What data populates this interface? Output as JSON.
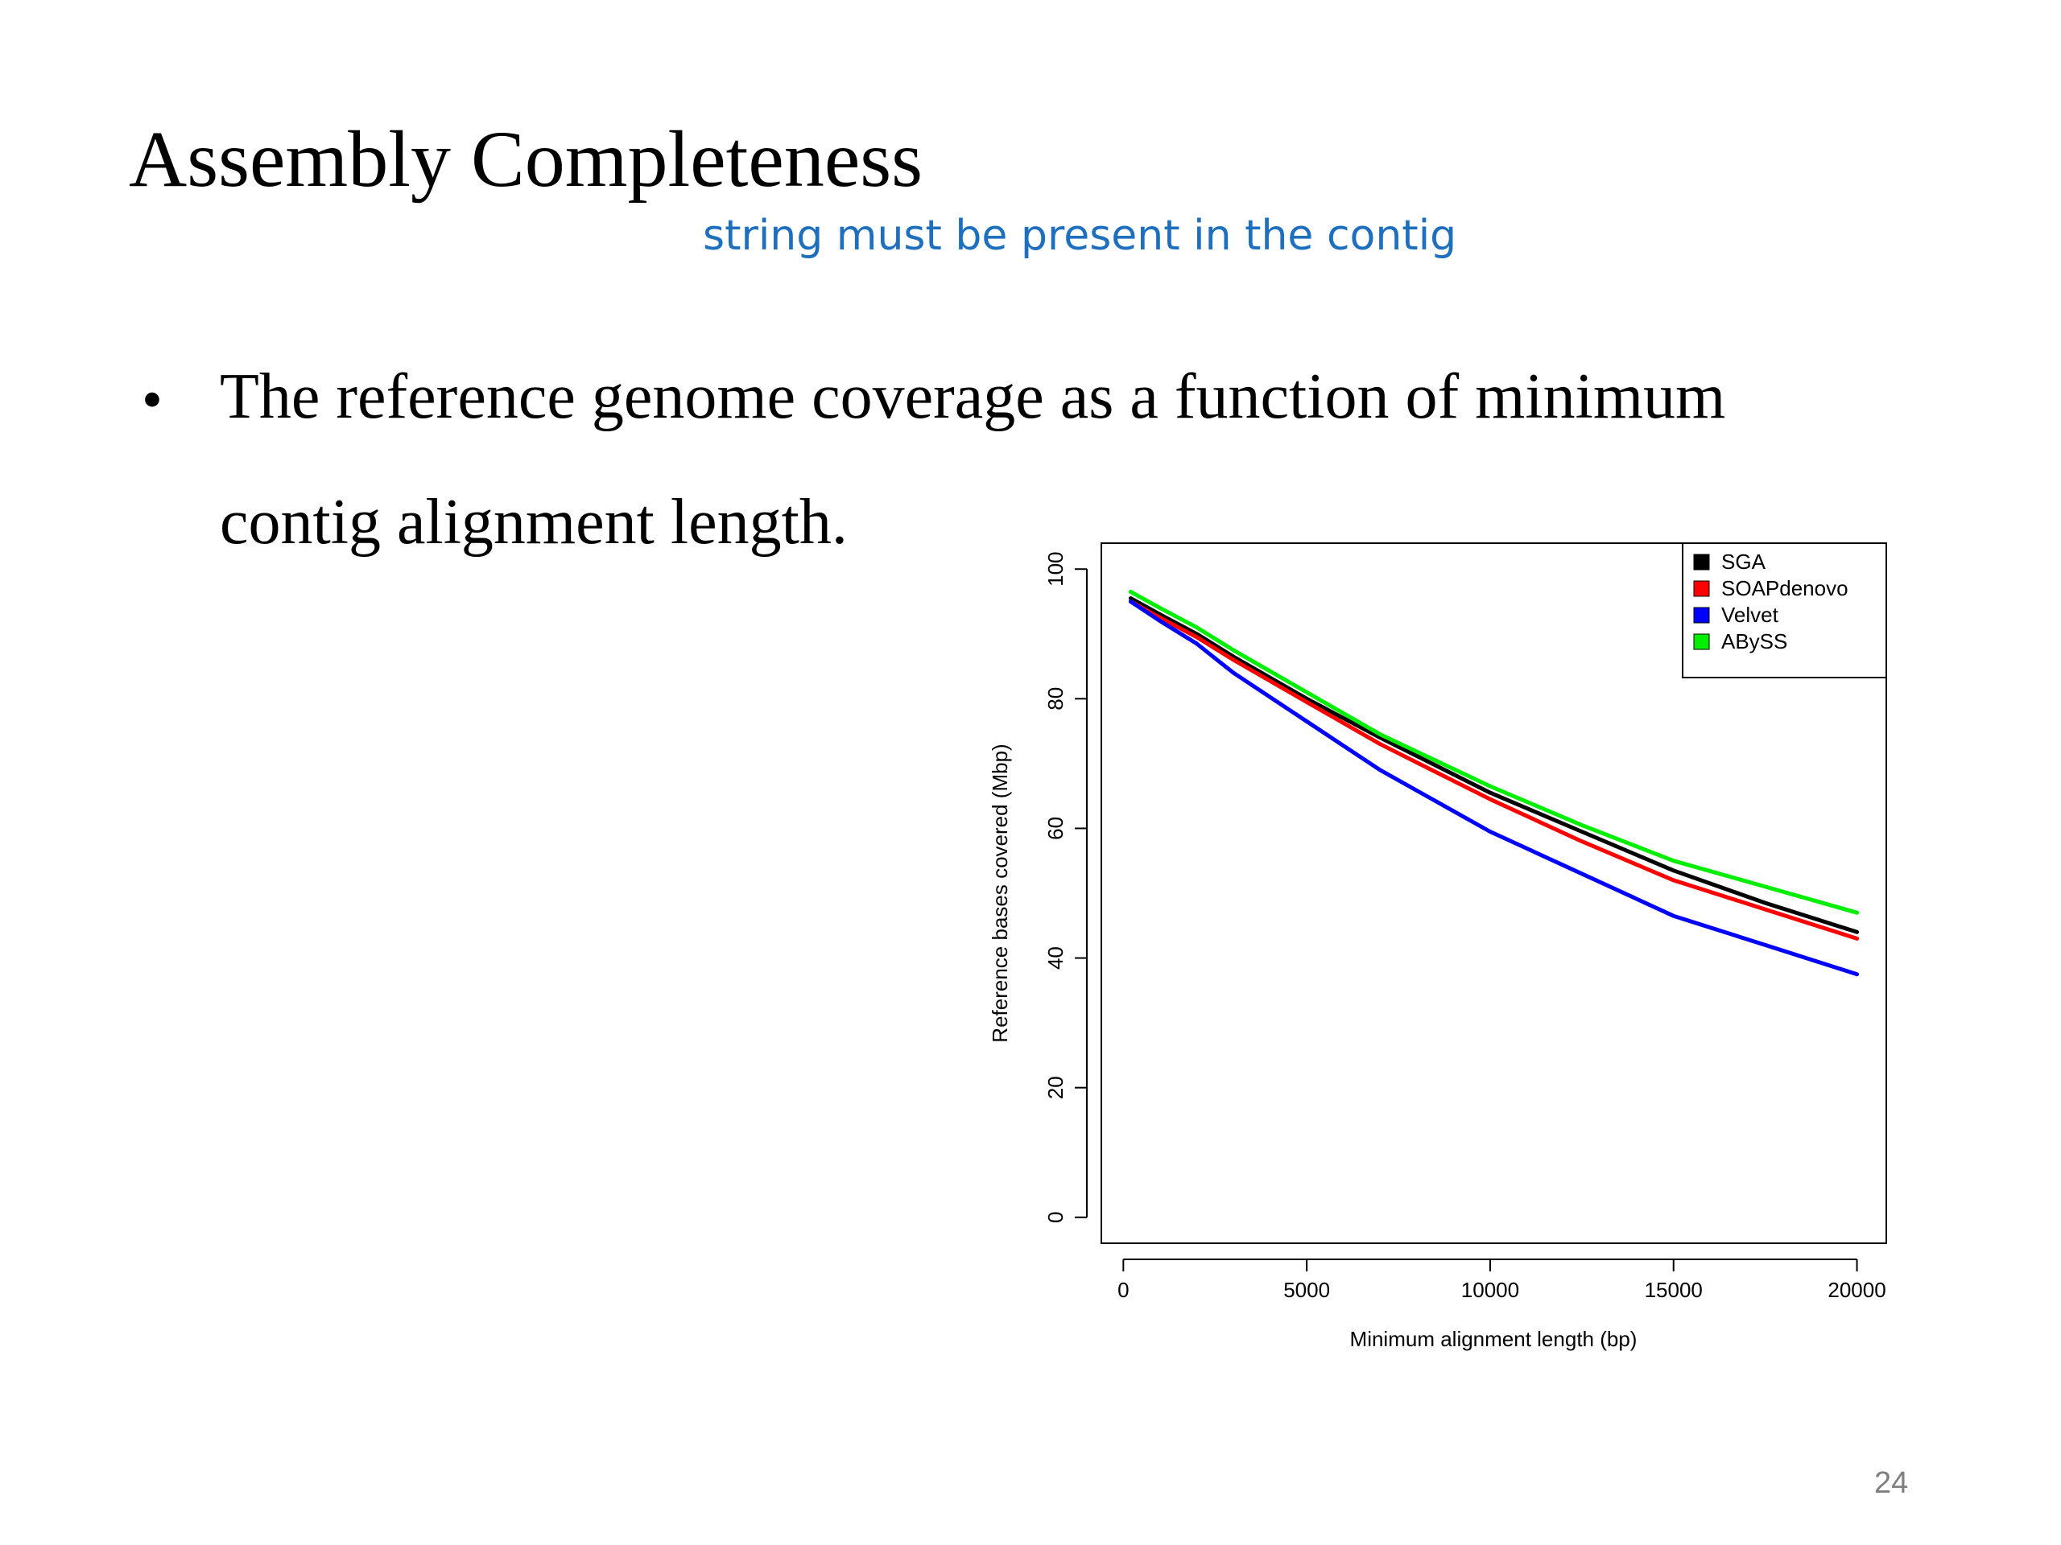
{
  "slide": {
    "title": "Assembly Completeness",
    "annotation": "string must be present in the contig",
    "bullet_line1": "The reference genome coverage as a function of minimum",
    "bullet_line2": "contig alignment length.",
    "page_number": "24"
  },
  "chart_data": {
    "type": "line",
    "title": "",
    "xlabel": "Minimum alignment length (bp)",
    "ylabel": "Reference bases covered (Mbp)",
    "xlim": [
      -600,
      20800
    ],
    "ylim": [
      -4,
      104
    ],
    "x_ticks": [
      0,
      5000,
      10000,
      15000,
      20000
    ],
    "y_ticks": [
      0,
      20,
      40,
      60,
      80,
      100
    ],
    "x_tick_labels": [
      "0",
      "5000",
      "10000",
      "15000",
      "20000"
    ],
    "y_tick_labels": [
      "0",
      "20",
      "40",
      "60",
      "80",
      "100"
    ],
    "legend_position": "top-right",
    "grid": false,
    "series": [
      {
        "name": "SGA",
        "color": "#000000",
        "points": [
          [
            200,
            95.5
          ],
          [
            1000,
            93
          ],
          [
            2000,
            90
          ],
          [
            3000,
            86.5
          ],
          [
            5000,
            80
          ],
          [
            7000,
            74
          ],
          [
            10000,
            65.5
          ],
          [
            12500,
            59.5
          ],
          [
            15000,
            53.5
          ],
          [
            17500,
            48.5
          ],
          [
            20000,
            44
          ]
        ]
      },
      {
        "name": "SOAPdenovo",
        "color": "#ff0000",
        "points": [
          [
            200,
            95
          ],
          [
            1000,
            92.5
          ],
          [
            2000,
            89.5
          ],
          [
            3000,
            86
          ],
          [
            5000,
            79.5
          ],
          [
            7000,
            73
          ],
          [
            10000,
            64.5
          ],
          [
            12500,
            58
          ],
          [
            15000,
            52
          ],
          [
            17500,
            47.5
          ],
          [
            20000,
            43
          ]
        ]
      },
      {
        "name": "Velvet",
        "color": "#0000ff",
        "points": [
          [
            200,
            95
          ],
          [
            1000,
            92
          ],
          [
            2000,
            88.5
          ],
          [
            3000,
            84
          ],
          [
            5000,
            76.5
          ],
          [
            7000,
            69
          ],
          [
            10000,
            59.5
          ],
          [
            12500,
            53
          ],
          [
            15000,
            46.5
          ],
          [
            17500,
            42
          ],
          [
            20000,
            37.5
          ]
        ]
      },
      {
        "name": "ABySS",
        "color": "#00ee00",
        "points": [
          [
            200,
            96.5
          ],
          [
            1000,
            94
          ],
          [
            2000,
            91
          ],
          [
            3000,
            87.5
          ],
          [
            5000,
            81
          ],
          [
            7000,
            74.5
          ],
          [
            10000,
            66.5
          ],
          [
            12500,
            60.5
          ],
          [
            15000,
            55
          ],
          [
            17500,
            51
          ],
          [
            20000,
            47
          ]
        ]
      }
    ]
  }
}
